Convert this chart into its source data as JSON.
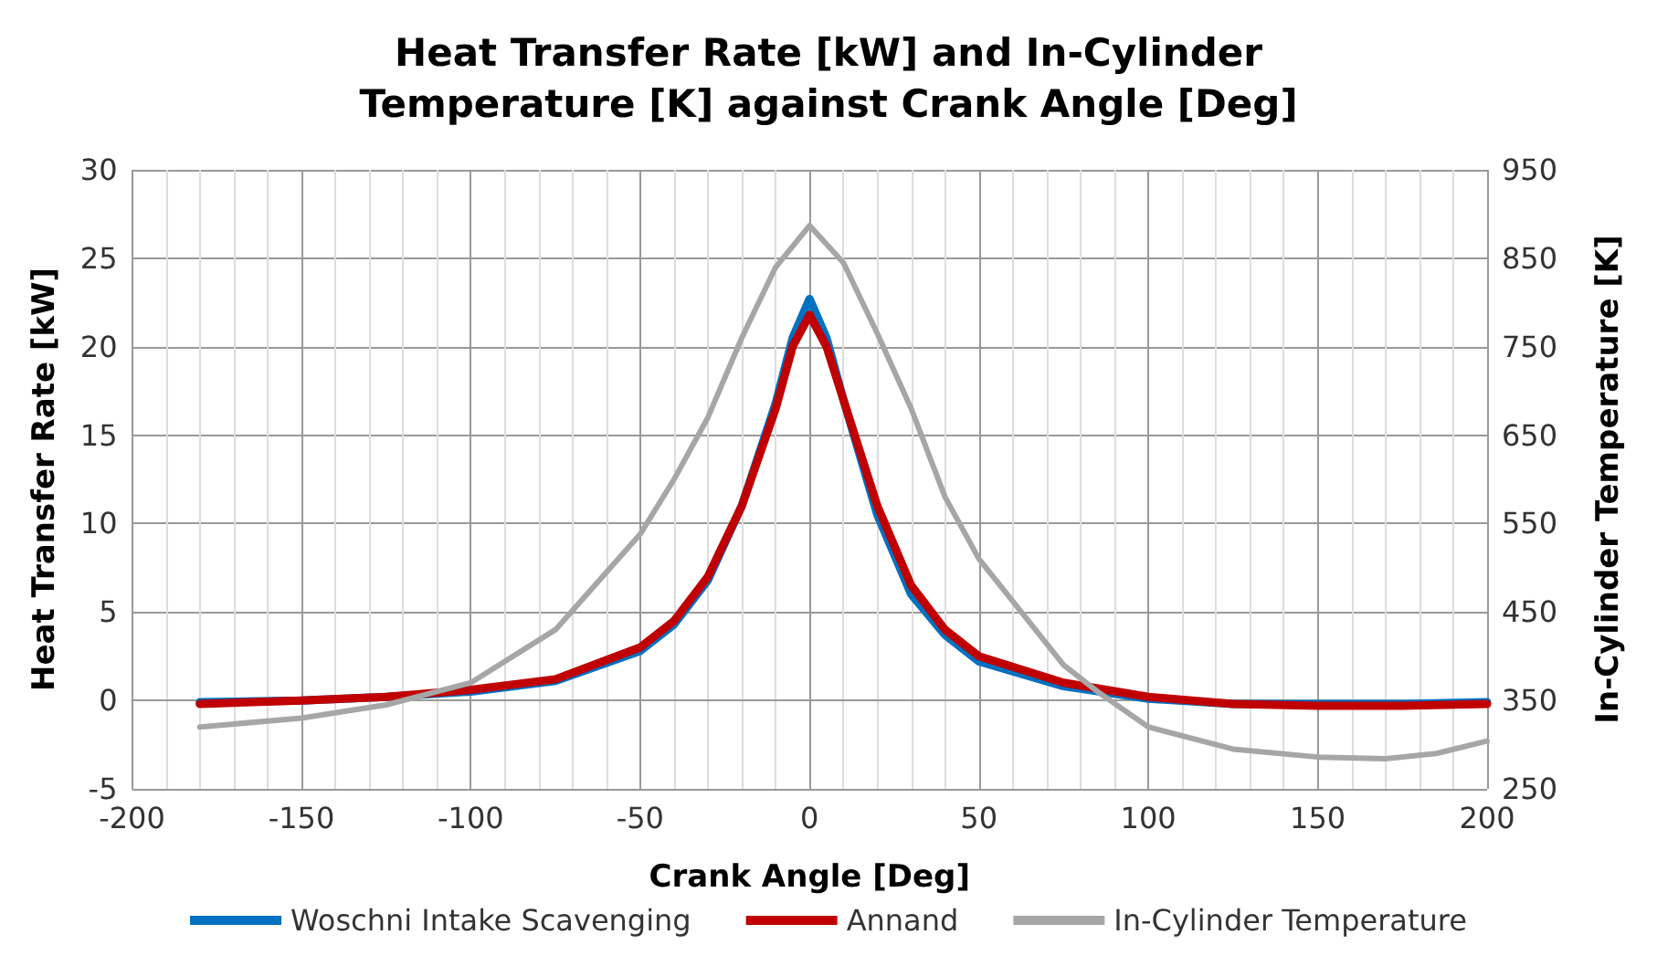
{
  "chart_data": {
    "type": "line",
    "title": "Heat Transfer Rate [kW] and In-Cylinder\nTemperature [K] against Crank Angle [Deg]",
    "xlabel": "Crank Angle [Deg]",
    "ylabel": "Heat Transfer Rate [kW]",
    "y2label": "In-Cylinder Temperature [K]",
    "xlim": [
      -200,
      200
    ],
    "xticks": [
      -200,
      -150,
      -100,
      -50,
      0,
      50,
      100,
      150,
      200
    ],
    "ylim": [
      -5,
      30
    ],
    "yticks": [
      -5,
      0,
      5,
      10,
      15,
      20,
      25,
      30
    ],
    "y2lim": [
      250,
      950
    ],
    "y2ticks": [
      250,
      350,
      450,
      550,
      650,
      750,
      850,
      950
    ],
    "grid": true,
    "legend": "bottom",
    "marker": "none",
    "line_style": "solid",
    "series": [
      {
        "name": "Woschni Intake Scavenging",
        "color": "#0070c0",
        "x": [
          -180,
          -150,
          -125,
          -100,
          -75,
          -50,
          -40,
          -30,
          -20,
          -10,
          -5,
          0,
          5,
          10,
          20,
          30,
          40,
          50,
          75,
          100,
          125,
          150,
          175,
          200
        ],
        "values": [
          -0.1,
          0,
          0.2,
          0.5,
          1.1,
          2.8,
          4.3,
          6.8,
          11,
          16.8,
          20.5,
          22.7,
          20.5,
          17,
          10.5,
          6,
          3.7,
          2.2,
          0.8,
          0.1,
          -0.2,
          -0.2,
          -0.2,
          -0.1
        ]
      },
      {
        "name": "Annand",
        "color": "#c00000",
        "x": [
          -180,
          -150,
          -125,
          -100,
          -75,
          -50,
          -40,
          -30,
          -20,
          -10,
          -5,
          0,
          5,
          10,
          20,
          30,
          40,
          50,
          75,
          100,
          125,
          150,
          175,
          200
        ],
        "values": [
          -0.2,
          0,
          0.2,
          0.6,
          1.2,
          3,
          4.5,
          7,
          11,
          16.5,
          20,
          21.8,
          20,
          17,
          11,
          6.5,
          4,
          2.5,
          1,
          0.2,
          -0.2,
          -0.3,
          -0.3,
          -0.2
        ]
      },
      {
        "name": "In-Cylinder Temperature",
        "color": "#a6a6a6",
        "axis": "y2",
        "x": [
          -180,
          -150,
          -125,
          -100,
          -75,
          -50,
          -40,
          -30,
          -20,
          -10,
          0,
          10,
          20,
          30,
          40,
          50,
          75,
          85,
          100,
          125,
          150,
          170,
          185,
          200
        ],
        "values": [
          320,
          330,
          345,
          370,
          430,
          538,
          600,
          670,
          760,
          840,
          887,
          845,
          765,
          680,
          580,
          510,
          390,
          360,
          320,
          295,
          286,
          284,
          290,
          304
        ]
      }
    ]
  }
}
